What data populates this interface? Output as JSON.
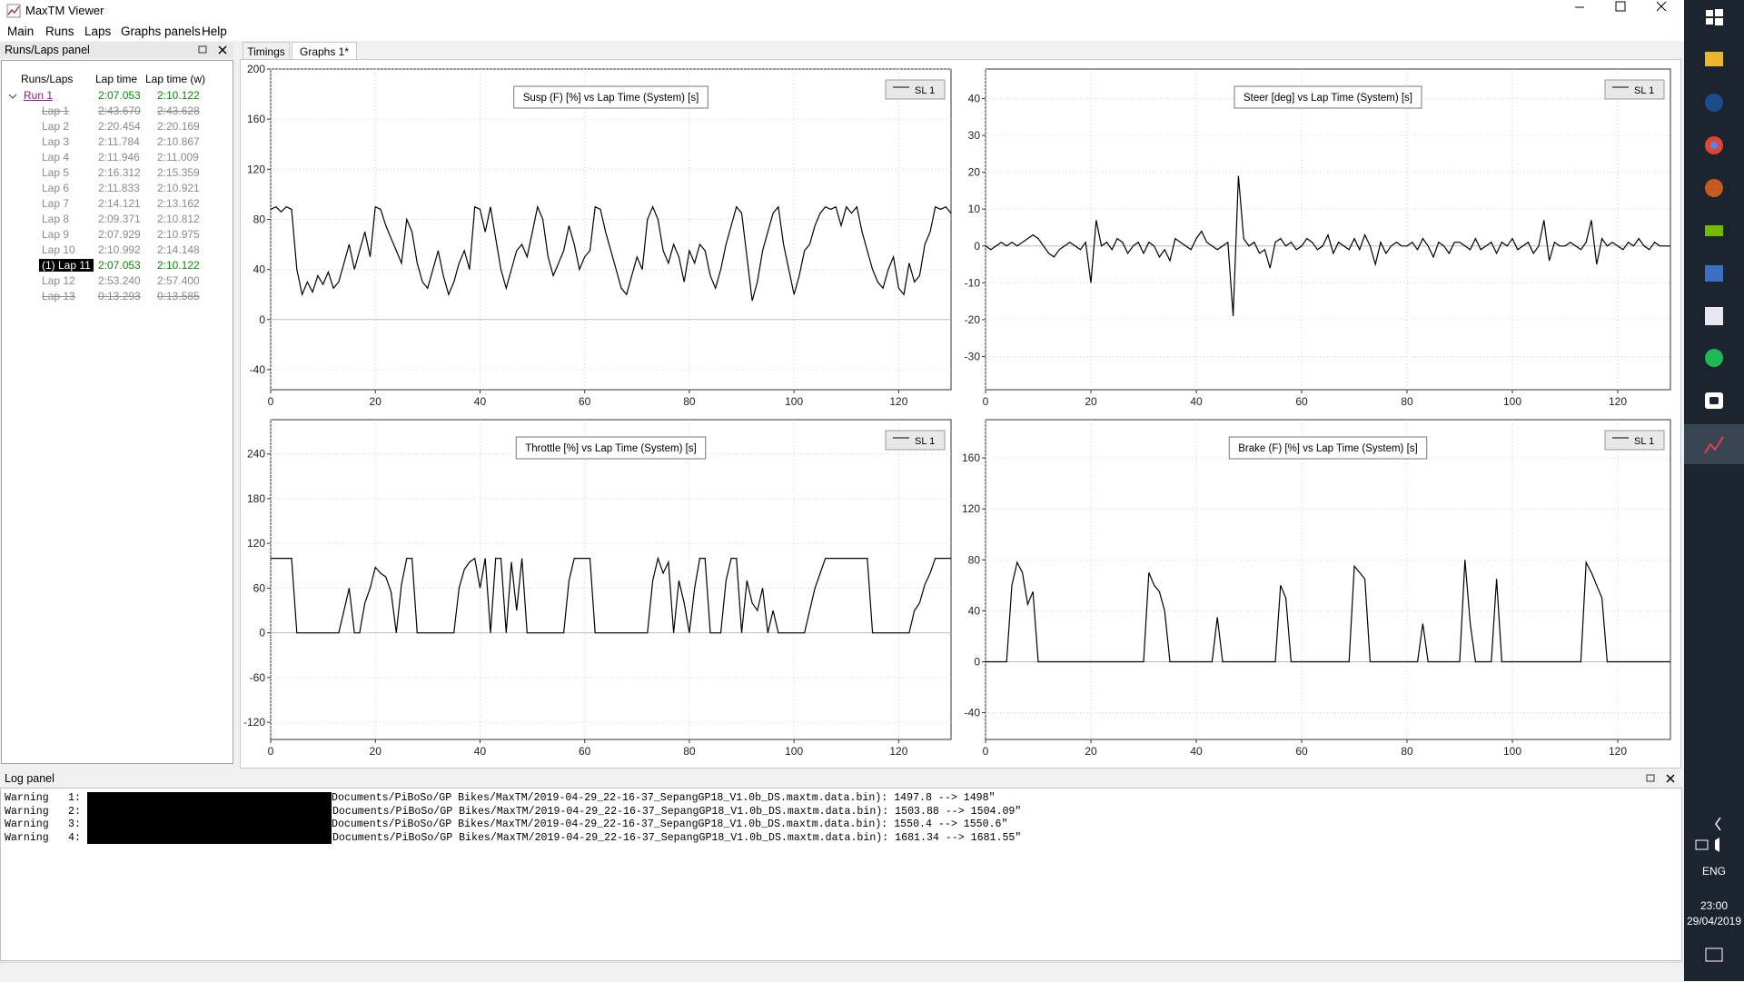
{
  "window": {
    "title": "MaxTM Viewer"
  },
  "menu": [
    "Main",
    "Runs",
    "Laps",
    "Graphs panels",
    "Help"
  ],
  "runs_panel": {
    "title": "Runs/Laps panel",
    "columns": [
      "Runs/Laps",
      "Lap time",
      "Lap time (w)"
    ],
    "run": [
      "Run 1",
      "2:07.053",
      "2:10.122"
    ],
    "laps": [
      [
        "Lap 1",
        "2:43.670",
        "2:43.628"
      ],
      [
        "Lap 2",
        "2:20.454",
        "2:20.169"
      ],
      [
        "Lap 3",
        "2:11.784",
        "2:10.867"
      ],
      [
        "Lap 4",
        "2:11.946",
        "2:11.009"
      ],
      [
        "Lap 5",
        "2:16.312",
        "2:15.359"
      ],
      [
        "Lap 6",
        "2:11.833",
        "2:10.921"
      ],
      [
        "Lap 7",
        "2:14.121",
        "2:13.162"
      ],
      [
        "Lap 8",
        "2:09.371",
        "2:10.812"
      ],
      [
        "Lap 9",
        "2:07.929",
        "2:10.975"
      ],
      [
        "Lap 10",
        "2:10.992",
        "2:14.148"
      ],
      [
        "(1) Lap 11",
        "2:07.053",
        "2:10.122"
      ],
      [
        "Lap 12",
        "2:53.240",
        "2:57.400"
      ],
      [
        "Lap 13",
        "0:13.293",
        "0:13.585"
      ]
    ]
  },
  "tabs": [
    "Timings",
    "Graphs 1*"
  ],
  "chart_data": [
    {
      "type": "line",
      "title": "Susp (F) [%] vs Lap Time (System) [s]",
      "grid": true,
      "xlim": [
        0,
        130
      ],
      "xticks": [
        0,
        20,
        40,
        60,
        80,
        100,
        120
      ],
      "ylim": [
        -56,
        200
      ],
      "yticks": [
        -40,
        0,
        40,
        80,
        120,
        160,
        200
      ],
      "x": [
        0,
        1,
        2,
        3,
        4,
        5,
        6,
        7,
        8,
        9,
        10,
        11,
        12,
        13,
        14,
        15,
        16,
        17,
        18,
        19,
        20,
        21,
        22,
        23,
        24,
        25,
        26,
        27,
        28,
        29,
        30,
        31,
        32,
        33,
        34,
        35,
        36,
        37,
        38,
        39,
        40,
        41,
        42,
        43,
        44,
        45,
        46,
        47,
        48,
        49,
        50,
        51,
        52,
        53,
        54,
        55,
        56,
        57,
        58,
        59,
        60,
        61,
        62,
        63,
        64,
        65,
        66,
        67,
        68,
        69,
        70,
        71,
        72,
        73,
        74,
        75,
        76,
        77,
        78,
        79,
        80,
        81,
        82,
        83,
        84,
        85,
        86,
        87,
        88,
        89,
        90,
        91,
        92,
        93,
        94,
        95,
        96,
        97,
        98,
        99,
        100,
        101,
        102,
        103,
        104,
        105,
        106,
        107,
        108,
        109,
        110,
        111,
        112,
        113,
        114,
        115,
        116,
        117,
        118,
        119,
        120,
        121,
        122,
        123,
        124,
        125,
        126,
        127,
        128,
        129,
        130
      ],
      "series": [
        {
          "name": "SL 1",
          "color": "#000000",
          "values": [
            88,
            90,
            86,
            90,
            88,
            40,
            20,
            30,
            22,
            35,
            28,
            38,
            25,
            30,
            45,
            60,
            40,
            55,
            70,
            50,
            90,
            88,
            75,
            65,
            55,
            45,
            80,
            70,
            45,
            30,
            25,
            40,
            55,
            35,
            20,
            30,
            45,
            55,
            40,
            90,
            88,
            70,
            90,
            65,
            40,
            25,
            40,
            55,
            60,
            50,
            70,
            90,
            80,
            50,
            35,
            45,
            55,
            75,
            60,
            40,
            50,
            55,
            90,
            88,
            70,
            55,
            40,
            25,
            20,
            35,
            50,
            40,
            80,
            90,
            80,
            55,
            45,
            60,
            50,
            30,
            55,
            45,
            60,
            55,
            35,
            25,
            40,
            60,
            75,
            90,
            85,
            50,
            15,
            30,
            55,
            70,
            85,
            90,
            60,
            40,
            20,
            35,
            55,
            60,
            75,
            85,
            90,
            88,
            90,
            75,
            90,
            85,
            90,
            70,
            55,
            40,
            30,
            25,
            40,
            50,
            25,
            20,
            45,
            30,
            35,
            60,
            70,
            90,
            88,
            90,
            85
          ]
        }
      ]
    },
    {
      "type": "line",
      "title": "Steer [deg] vs Lap Time (System) [s]",
      "grid": true,
      "xlim": [
        0,
        130
      ],
      "xticks": [
        0,
        20,
        40,
        60,
        80,
        100,
        120
      ],
      "ylim": [
        -39,
        48
      ],
      "yticks": [
        -30,
        -20,
        -10,
        0,
        10,
        20,
        30,
        40
      ],
      "x": [
        0,
        1,
        2,
        3,
        4,
        5,
        6,
        7,
        8,
        9,
        10,
        11,
        12,
        13,
        14,
        15,
        16,
        17,
        18,
        19,
        20,
        21,
        22,
        23,
        24,
        25,
        26,
        27,
        28,
        29,
        30,
        31,
        32,
        33,
        34,
        35,
        36,
        37,
        38,
        39,
        40,
        41,
        42,
        43,
        44,
        45,
        46,
        47,
        48,
        49,
        50,
        51,
        52,
        53,
        54,
        55,
        56,
        57,
        58,
        59,
        60,
        61,
        62,
        63,
        64,
        65,
        66,
        67,
        68,
        69,
        70,
        71,
        72,
        73,
        74,
        75,
        76,
        77,
        78,
        79,
        80,
        81,
        82,
        83,
        84,
        85,
        86,
        87,
        88,
        89,
        90,
        91,
        92,
        93,
        94,
        95,
        96,
        97,
        98,
        99,
        100,
        101,
        102,
        103,
        104,
        105,
        106,
        107,
        108,
        109,
        110,
        111,
        112,
        113,
        114,
        115,
        116,
        117,
        118,
        119,
        120,
        121,
        122,
        123,
        124,
        125,
        126,
        127,
        128,
        129,
        130
      ],
      "series": [
        {
          "name": "SL 1",
          "color": "#000000",
          "values": [
            0,
            -1,
            0,
            1,
            0,
            1,
            0,
            1,
            2,
            3,
            2,
            0,
            -2,
            -3,
            -1,
            0,
            1,
            0,
            -1,
            1,
            -10,
            7,
            0,
            1,
            -1,
            2,
            1,
            -2,
            0,
            1,
            -2,
            1,
            0,
            -3,
            -1,
            -4,
            2,
            1,
            0,
            -1,
            2,
            4,
            1,
            0,
            -1,
            0,
            1,
            -19,
            19,
            2,
            0,
            1,
            -2,
            -1,
            -6,
            1,
            2,
            0,
            1,
            -1,
            0,
            2,
            1,
            -1,
            0,
            3,
            -2,
            1,
            0,
            -1,
            2,
            -1,
            3,
            0,
            -5,
            1,
            -2,
            0,
            1,
            0,
            0,
            1,
            -1,
            2,
            0,
            -3,
            1,
            0,
            -2,
            1,
            1,
            0,
            -1,
            2,
            -1,
            0,
            1,
            -2,
            1,
            0,
            2,
            -1,
            0,
            1,
            -2,
            0,
            7,
            -4,
            1,
            0,
            0,
            1,
            0,
            -1,
            1,
            7,
            -5,
            2,
            0,
            1,
            0,
            -1,
            1,
            0,
            2,
            0,
            -1,
            1,
            0,
            0,
            0
          ]
        }
      ]
    },
    {
      "type": "line",
      "title": "Throttle [%] vs Lap Time (System) [s]",
      "grid": true,
      "xlim": [
        0,
        130
      ],
      "xticks": [
        0,
        20,
        40,
        60,
        80,
        100,
        120
      ],
      "ylim": [
        -143,
        286
      ],
      "yticks": [
        -120,
        -60,
        0,
        60,
        120,
        180,
        240
      ],
      "x": [
        0,
        1,
        2,
        3,
        4,
        5,
        6,
        7,
        8,
        9,
        10,
        11,
        12,
        13,
        14,
        15,
        16,
        17,
        18,
        19,
        20,
        21,
        22,
        23,
        24,
        25,
        26,
        27,
        28,
        29,
        30,
        31,
        32,
        33,
        34,
        35,
        36,
        37,
        38,
        39,
        40,
        41,
        42,
        43,
        44,
        45,
        46,
        47,
        48,
        49,
        50,
        51,
        52,
        53,
        54,
        55,
        56,
        57,
        58,
        59,
        60,
        61,
        62,
        63,
        64,
        65,
        66,
        67,
        68,
        69,
        70,
        71,
        72,
        73,
        74,
        75,
        76,
        77,
        78,
        79,
        80,
        81,
        82,
        83,
        84,
        85,
        86,
        87,
        88,
        89,
        90,
        91,
        92,
        93,
        94,
        95,
        96,
        97,
        98,
        99,
        100,
        101,
        102,
        103,
        104,
        105,
        106,
        107,
        108,
        109,
        110,
        111,
        112,
        113,
        114,
        115,
        116,
        117,
        118,
        119,
        120,
        121,
        122,
        123,
        124,
        125,
        126,
        127,
        128,
        129,
        130
      ],
      "series": [
        {
          "name": "SL 1",
          "color": "#000000",
          "values": [
            100,
            100,
            100,
            100,
            100,
            0,
            0,
            0,
            0,
            0,
            0,
            0,
            0,
            0,
            30,
            60,
            0,
            0,
            40,
            60,
            88,
            80,
            75,
            55,
            0,
            65,
            100,
            100,
            0,
            0,
            0,
            0,
            0,
            0,
            0,
            0,
            60,
            85,
            95,
            100,
            60,
            100,
            0,
            100,
            100,
            0,
            95,
            30,
            100,
            0,
            0,
            0,
            0,
            0,
            0,
            0,
            0,
            70,
            100,
            100,
            100,
            100,
            0,
            0,
            0,
            0,
            0,
            0,
            0,
            0,
            0,
            0,
            0,
            70,
            100,
            80,
            95,
            0,
            70,
            40,
            0,
            60,
            100,
            100,
            0,
            0,
            0,
            70,
            100,
            100,
            0,
            70,
            40,
            30,
            60,
            0,
            30,
            0,
            0,
            0,
            0,
            0,
            0,
            30,
            60,
            80,
            100,
            100,
            100,
            100,
            100,
            100,
            100,
            100,
            100,
            0,
            0,
            0,
            0,
            0,
            0,
            0,
            0,
            30,
            40,
            65,
            80,
            100,
            100,
            100,
            100
          ]
        }
      ]
    },
    {
      "type": "line",
      "title": "Brake (F) [%] vs Lap Time (System) [s]",
      "grid": true,
      "xlim": [
        0,
        130
      ],
      "xticks": [
        0,
        20,
        40,
        60,
        80,
        100,
        120
      ],
      "ylim": [
        -61,
        190
      ],
      "yticks": [
        -40,
        0,
        40,
        80,
        120,
        160
      ],
      "x": [
        0,
        1,
        2,
        3,
        4,
        5,
        6,
        7,
        8,
        9,
        10,
        11,
        12,
        13,
        14,
        15,
        16,
        17,
        18,
        19,
        20,
        21,
        22,
        23,
        24,
        25,
        26,
        27,
        28,
        29,
        30,
        31,
        32,
        33,
        34,
        35,
        36,
        37,
        38,
        39,
        40,
        41,
        42,
        43,
        44,
        45,
        46,
        47,
        48,
        49,
        50,
        51,
        52,
        53,
        54,
        55,
        56,
        57,
        58,
        59,
        60,
        61,
        62,
        63,
        64,
        65,
        66,
        67,
        68,
        69,
        70,
        71,
        72,
        73,
        74,
        75,
        76,
        77,
        78,
        79,
        80,
        81,
        82,
        83,
        84,
        85,
        86,
        87,
        88,
        89,
        90,
        91,
        92,
        93,
        94,
        95,
        96,
        97,
        98,
        99,
        100,
        101,
        102,
        103,
        104,
        105,
        106,
        107,
        108,
        109,
        110,
        111,
        112,
        113,
        114,
        115,
        116,
        117,
        118,
        119,
        120,
        121,
        122,
        123,
        124,
        125,
        126,
        127,
        128,
        129,
        130
      ],
      "series": [
        {
          "name": "SL 1",
          "color": "#000000",
          "values": [
            0,
            0,
            0,
            0,
            0,
            60,
            78,
            70,
            45,
            55,
            0,
            0,
            0,
            0,
            0,
            0,
            0,
            0,
            0,
            0,
            0,
            0,
            0,
            0,
            0,
            0,
            0,
            0,
            0,
            0,
            0,
            70,
            60,
            55,
            40,
            0,
            0,
            0,
            0,
            0,
            0,
            0,
            0,
            0,
            35,
            0,
            0,
            0,
            0,
            0,
            0,
            0,
            0,
            0,
            0,
            0,
            60,
            50,
            0,
            0,
            0,
            0,
            0,
            0,
            0,
            0,
            0,
            0,
            0,
            0,
            75,
            70,
            65,
            0,
            0,
            0,
            0,
            0,
            0,
            0,
            0,
            0,
            0,
            30,
            0,
            0,
            0,
            0,
            0,
            0,
            0,
            80,
            30,
            0,
            0,
            0,
            0,
            65,
            0,
            0,
            0,
            0,
            0,
            0,
            0,
            0,
            0,
            0,
            0,
            0,
            0,
            0,
            0,
            0,
            78,
            70,
            60,
            50,
            0,
            0,
            0,
            0,
            0,
            0,
            0,
            0,
            0,
            0,
            0,
            0,
            0
          ]
        }
      ]
    }
  ],
  "log_panel": {
    "title": "Log panel",
    "lines": [
      [
        "Warning",
        "1:",
        "Documents/PiBoSo/GP Bikes/MaxTM/2019-04-29_22-16-37_SepangGP18_V1.0b_DS.maxtm.data.bin): 1497.8 --> 1498\""
      ],
      [
        "Warning",
        "2:",
        "/Documents/PiBoSo/GP Bikes/MaxTM/2019-04-29_22-16-37_SepangGP18_V1.0b_DS.maxtm.data.bin): 1503.88 --> 1504.09\""
      ],
      [
        "Warning",
        "3:",
        "Documents/PiBoSo/GP Bikes/MaxTM/2019-04-29_22-16-37_SepangGP18_V1.0b_DS.maxtm.data.bin): 1550.4 --> 1550.6\""
      ],
      [
        "Warning",
        "4:",
        "/Documents/PiBoSo/GP Bikes/MaxTM/2019-04-29_22-16-37_SepangGP18_V1.0b_DS.maxtm.data.bin): 1681.34 --> 1681.55\""
      ]
    ]
  },
  "taskbar": {
    "language": "ENG",
    "time": "23:00",
    "date": "29/04/2019"
  }
}
